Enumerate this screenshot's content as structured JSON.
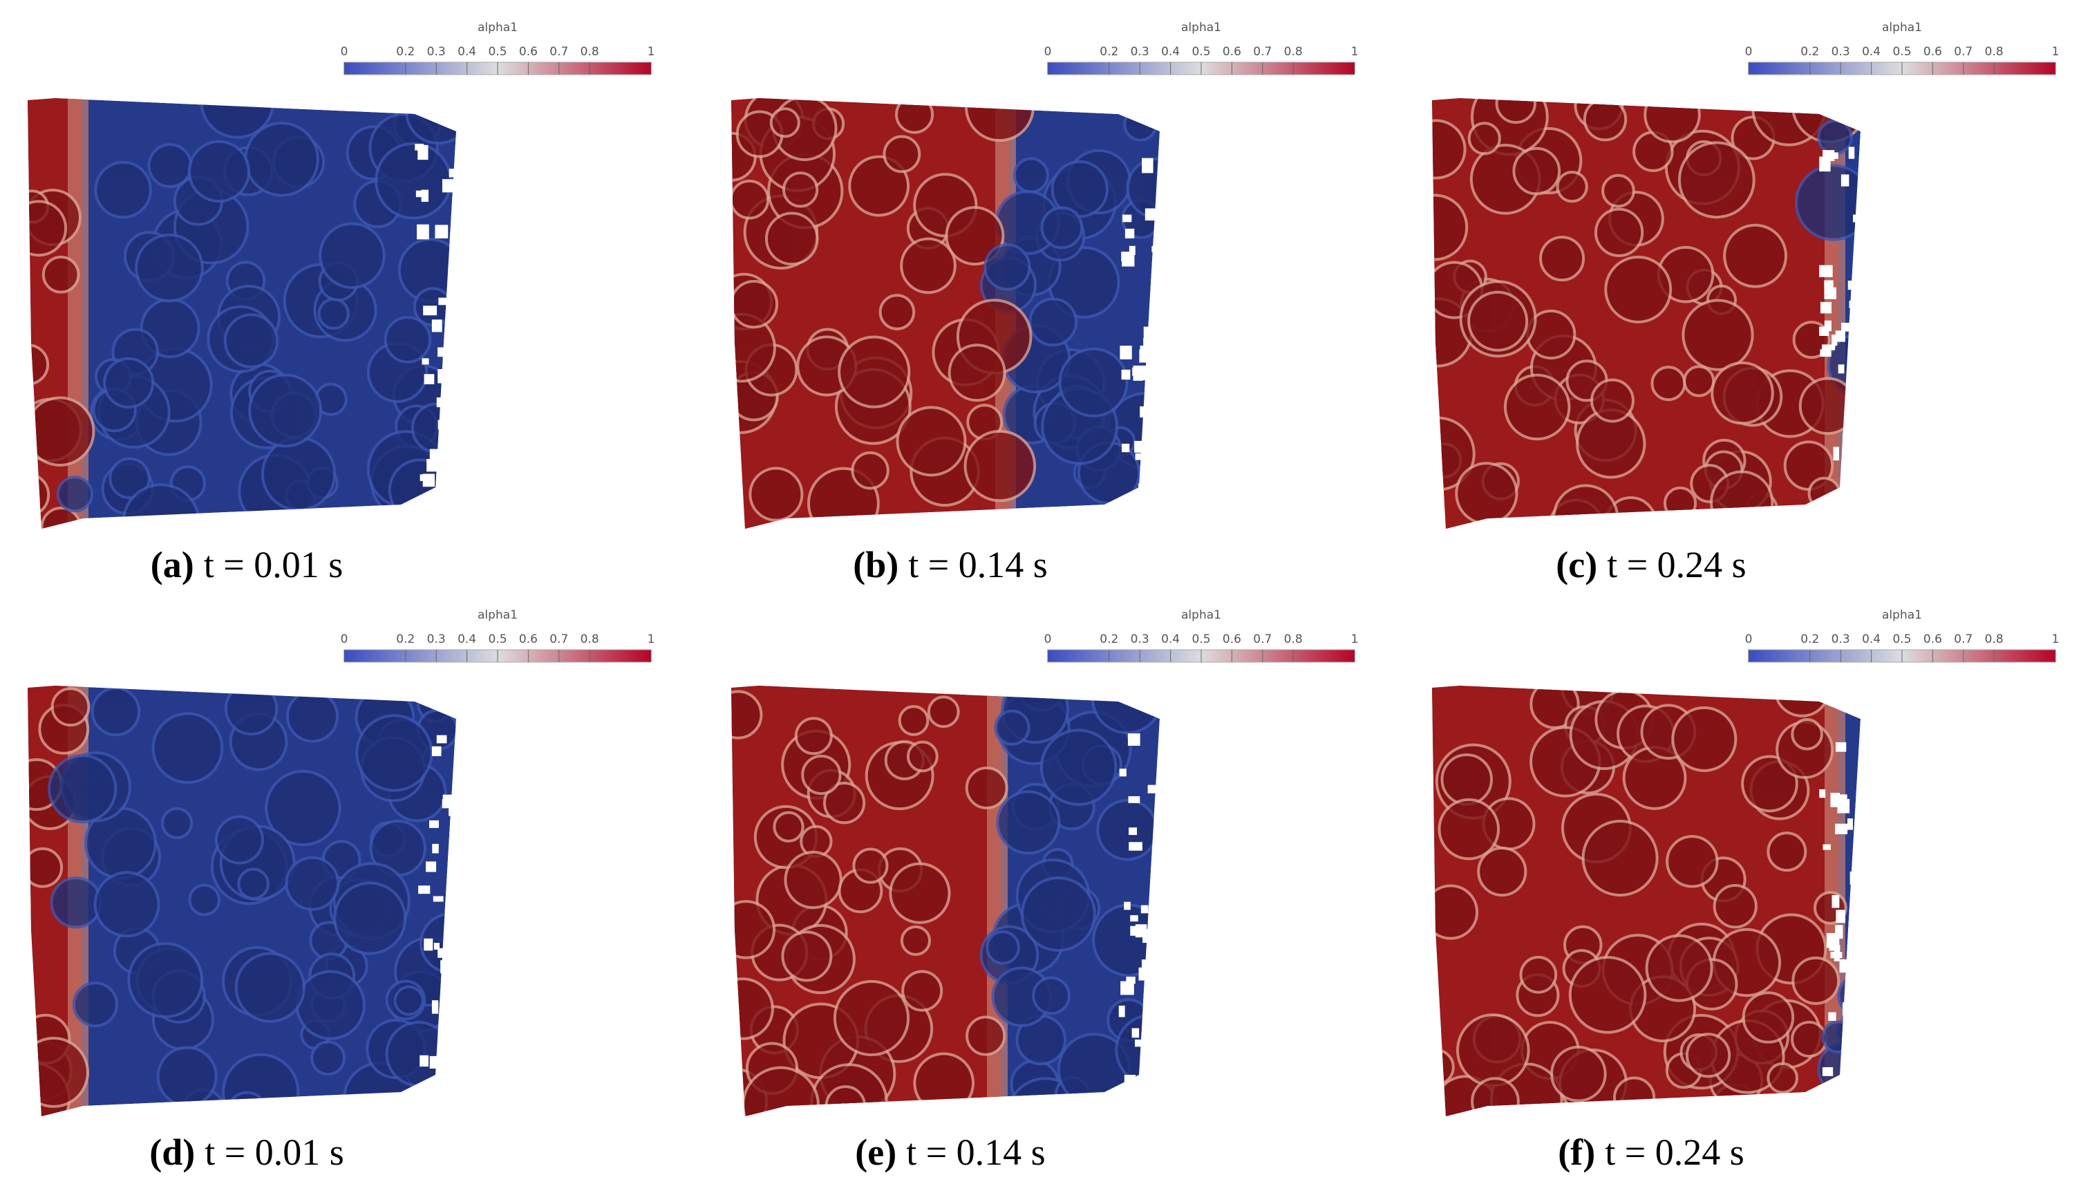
{
  "panels": [
    {
      "label": "(a)",
      "caption": "t = 0.01 s",
      "colorbar": {
        "title": "alpha1",
        "lim": [
          0,
          1
        ],
        "ticks": [
          0,
          0.2,
          0.3,
          0.4,
          0.5,
          0.6,
          0.7,
          0.8,
          1
        ]
      }
    },
    {
      "label": "(b)",
      "caption": "t = 0.14 s",
      "colorbar": {
        "title": "alpha1",
        "lim": [
          0,
          1
        ],
        "ticks": [
          0,
          0.2,
          0.3,
          0.4,
          0.5,
          0.6,
          0.7,
          0.8,
          1
        ]
      }
    },
    {
      "label": "(c)",
      "caption": "t = 0.24 s",
      "colorbar": {
        "title": "alpha1",
        "lim": [
          0,
          1
        ],
        "ticks": [
          0,
          0.2,
          0.3,
          0.4,
          0.5,
          0.6,
          0.7,
          0.8,
          1
        ]
      }
    },
    {
      "label": "(d)",
      "caption": "t = 0.01 s",
      "colorbar": {
        "title": "alpha1",
        "lim": [
          0,
          1
        ],
        "ticks": [
          0,
          0.2,
          0.3,
          0.4,
          0.5,
          0.6,
          0.7,
          0.8,
          1
        ]
      }
    },
    {
      "label": "(e)",
      "caption": "t = 0.14 s",
      "colorbar": {
        "title": "alpha1",
        "lim": [
          0,
          1
        ],
        "ticks": [
          0,
          0.2,
          0.3,
          0.4,
          0.5,
          0.6,
          0.7,
          0.8,
          1
        ]
      }
    },
    {
      "label": "(f)",
      "caption": "t = 0.24 s",
      "colorbar": {
        "title": "alpha1",
        "lim": [
          0,
          1
        ],
        "ticks": [
          0,
          0.2,
          0.3,
          0.4,
          0.5,
          0.6,
          0.7,
          0.8,
          1
        ]
      }
    }
  ]
}
